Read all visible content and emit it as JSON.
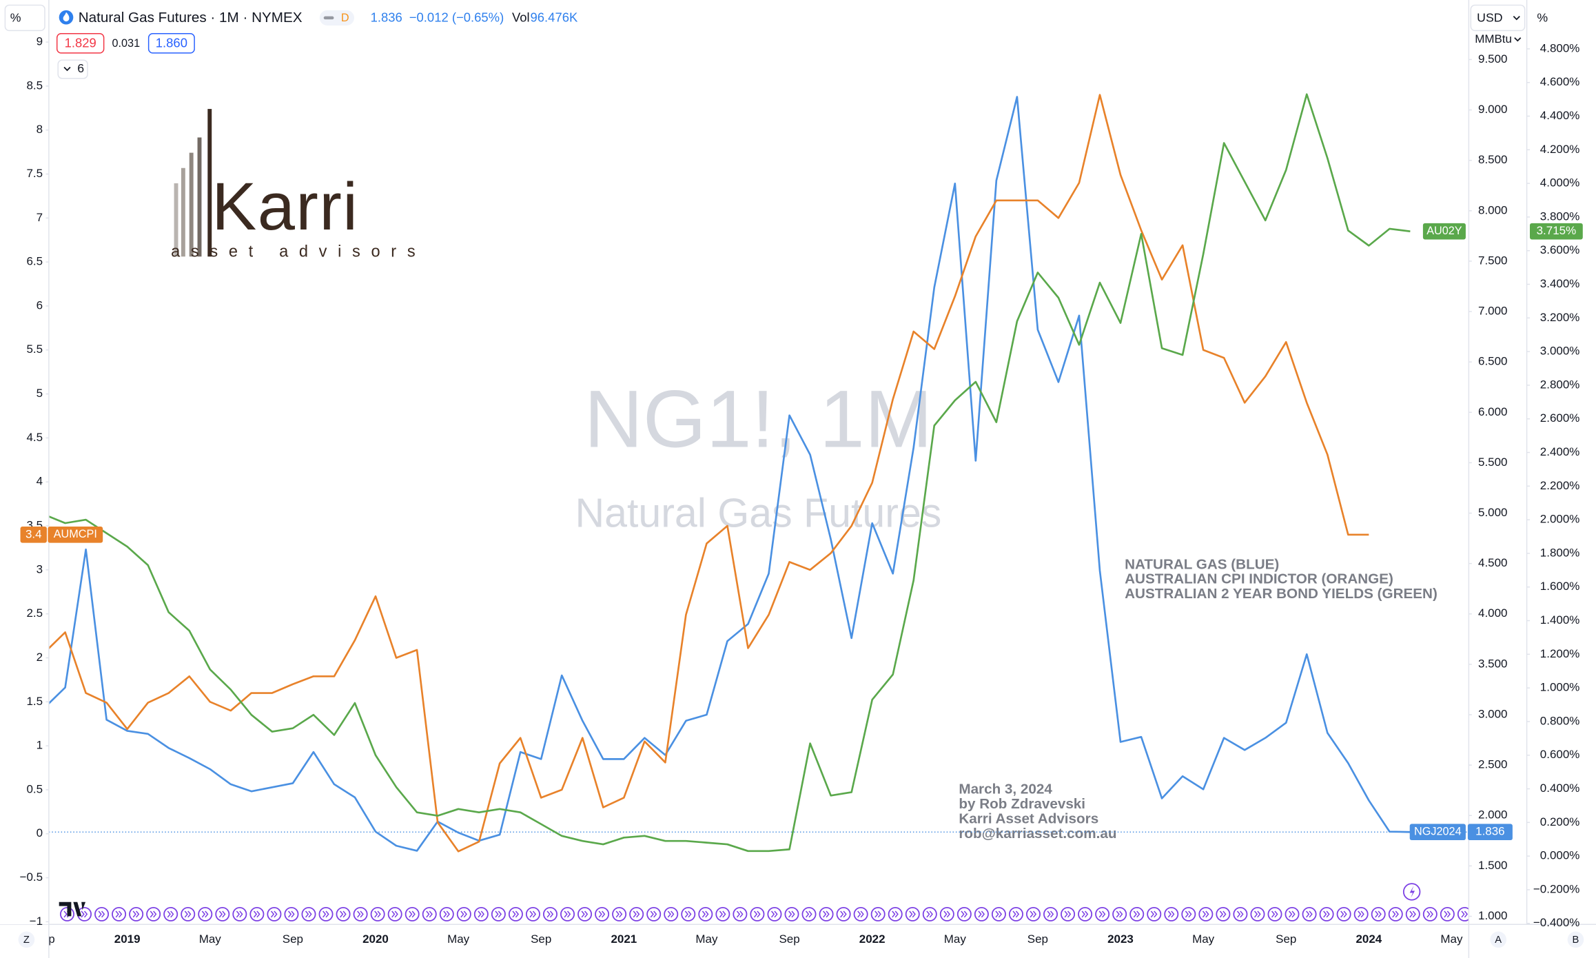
{
  "header": {
    "left_scale_unit": "%",
    "symbol_title": "Natural Gas Futures · 1M · NYMEX",
    "interval_badge": "D",
    "last": "1.836",
    "change": "−0.012 (−0.65%)",
    "vol_label": "Vol",
    "vol": "96.476K",
    "bid": "1.829",
    "spread": "0.031",
    "ask": "1.860",
    "indicators_count": "6",
    "currency": "USD",
    "unit": "MMBtu",
    "right_scale_unit": "%"
  },
  "logo": {
    "name": "Karri",
    "tagline": "asset advisors"
  },
  "annotations": {
    "legend_notes": [
      "NATURAL GAS (BLUE)",
      "AUSTRALIAN CPI INDICTOR (ORANGE)",
      "AUSTRALIAN 2 YEAR BOND YIELDS (GREEN)"
    ],
    "byline": [
      "March 3, 2024",
      "by Rob Zdravevski",
      "Karri Asset Advisors",
      "rob@karriasset.com.au"
    ]
  },
  "footer": {
    "left": "Z",
    "auto": "A",
    "right": "B"
  },
  "chart_data": {
    "type": "line",
    "watermark": {
      "symbol": "NG1!, 1M",
      "name": "Natural Gas Futures"
    },
    "categories": [
      "Sep",
      null,
      null,
      null,
      "2019",
      null,
      null,
      null,
      "May",
      null,
      null,
      null,
      "Sep",
      null,
      null,
      null,
      "2020",
      null,
      null,
      null,
      "May",
      null,
      null,
      null,
      "Sep",
      null,
      null,
      null,
      "2021",
      null,
      null,
      null,
      "May",
      null,
      null,
      null,
      "Sep",
      null,
      null,
      null,
      "2022",
      null,
      null,
      null,
      "May",
      null,
      null,
      null,
      "Sep",
      null,
      null,
      null,
      "2023",
      null,
      null,
      null,
      "May",
      null,
      null,
      null,
      "Sep",
      null,
      null,
      null,
      "2024",
      null,
      null,
      null,
      "May"
    ],
    "ylim": [
      -1.03,
      9.42
    ],
    "yticks": [
      {
        "value": -1,
        "label": "−1"
      },
      {
        "value": -0.5,
        "label": "−0.5"
      },
      0,
      0.5,
      1,
      1.5,
      2,
      2.5,
      3,
      3.5,
      4,
      4.5,
      5,
      5.5,
      6,
      6.5,
      7,
      7.5,
      8,
      8.5,
      9
    ],
    "y2lim": [
      0.92,
      10.04
    ],
    "y2ticks": [
      {
        "value": 1,
        "label": "1.000"
      },
      {
        "value": 1.5,
        "label": "1.500"
      },
      {
        "value": 2,
        "label": "2.000"
      },
      {
        "value": 2.5,
        "label": "2.500"
      },
      {
        "value": 3,
        "label": "3.000"
      },
      {
        "value": 3.5,
        "label": "3.500"
      },
      {
        "value": 4,
        "label": "4.000"
      },
      {
        "value": 4.5,
        "label": "4.500"
      },
      {
        "value": 5,
        "label": "5.000"
      },
      {
        "value": 5.5,
        "label": "5.500"
      },
      {
        "value": 6,
        "label": "6.000"
      },
      {
        "value": 6.5,
        "label": "6.500"
      },
      {
        "value": 7,
        "label": "7.000"
      },
      {
        "value": 7.5,
        "label": "7.500"
      },
      {
        "value": 8,
        "label": "8.000"
      },
      {
        "value": 8.5,
        "label": "8.500"
      },
      {
        "value": 9,
        "label": "9.000"
      },
      {
        "value": 9.5,
        "label": "9.500"
      }
    ],
    "y3lim": [
      -0.406,
      5.06
    ],
    "y3ticks": [
      {
        "value": -0.4,
        "label": "−0.400%"
      },
      {
        "value": -0.2,
        "label": "−0.200%"
      },
      {
        "value": 0,
        "label": "0.000%"
      },
      {
        "value": 0.2,
        "label": "0.200%"
      },
      {
        "value": 0.4,
        "label": "0.400%"
      },
      {
        "value": 0.6,
        "label": "0.600%"
      },
      {
        "value": 0.8,
        "label": "0.800%"
      },
      {
        "value": 1,
        "label": "1.000%"
      },
      {
        "value": 1.2,
        "label": "1.200%"
      },
      {
        "value": 1.4,
        "label": "1.400%"
      },
      {
        "value": 1.6,
        "label": "1.600%"
      },
      {
        "value": 1.8,
        "label": "1.800%"
      },
      {
        "value": 2,
        "label": "2.000%"
      },
      {
        "value": 2.2,
        "label": "2.200%"
      },
      {
        "value": 2.4,
        "label": "2.400%"
      },
      {
        "value": 2.6,
        "label": "2.600%"
      },
      {
        "value": 2.8,
        "label": "2.800%"
      },
      {
        "value": 3,
        "label": "3.000%"
      },
      {
        "value": 3.2,
        "label": "3.200%"
      },
      {
        "value": 3.4,
        "label": "3.400%"
      },
      {
        "value": 3.6,
        "label": "3.600%"
      },
      {
        "value": 3.8,
        "label": "3.800%"
      },
      {
        "value": 4,
        "label": "4.000%"
      },
      {
        "value": 4.2,
        "label": "4.200%"
      },
      {
        "value": 4.4,
        "label": "4.400%"
      },
      {
        "value": 4.6,
        "label": "4.600%"
      },
      {
        "value": 4.8,
        "label": "4.800%"
      }
    ],
    "grid": false,
    "series": [
      {
        "name": "NGJ2024",
        "color": "#4a90e2",
        "axis": "y2",
        "values": [
          3.07,
          3.27,
          4.64,
          2.95,
          2.84,
          2.81,
          2.67,
          2.57,
          2.46,
          2.31,
          2.24,
          2.28,
          2.32,
          2.63,
          2.31,
          2.18,
          1.84,
          1.7,
          1.65,
          1.94,
          1.83,
          1.75,
          1.81,
          2.63,
          2.56,
          3.39,
          2.94,
          2.56,
          2.56,
          2.77,
          2.6,
          2.94,
          3.0,
          3.73,
          3.9,
          4.4,
          5.97,
          5.58,
          4.74,
          3.76,
          4.9,
          4.4,
          5.65,
          7.24,
          8.27,
          5.52,
          8.3,
          9.13,
          6.82,
          6.3,
          6.96,
          4.43,
          2.73,
          2.78,
          2.17,
          2.39,
          2.26,
          2.77,
          2.65,
          2.77,
          2.92,
          3.6,
          2.82,
          2.52,
          2.15,
          1.84,
          1.836,
          null,
          null
        ]
      },
      {
        "name": "AUMCPI",
        "color": "#e8822a",
        "axis": "y",
        "values": [
          2.06,
          2.29,
          1.6,
          1.49,
          1.19,
          1.49,
          1.6,
          1.79,
          1.5,
          1.4,
          1.6,
          1.6,
          1.7,
          1.79,
          1.79,
          2.2,
          2.7,
          2.0,
          2.09,
          0.13,
          -0.2,
          -0.09,
          0.8,
          1.09,
          0.41,
          0.5,
          1.09,
          0.3,
          0.41,
          1.05,
          0.81,
          2.49,
          3.3,
          3.5,
          2.11,
          2.49,
          3.09,
          3.0,
          3.19,
          3.5,
          3.99,
          4.94,
          5.71,
          5.51,
          6.11,
          6.79,
          7.2,
          7.2,
          7.2,
          7.0,
          7.4,
          8.4,
          7.49,
          6.86,
          6.3,
          6.69,
          5.5,
          5.41,
          4.9,
          5.2,
          5.59,
          4.9,
          4.31,
          3.4,
          3.4,
          null,
          null,
          null,
          null
        ]
      },
      {
        "name": "AU02Y",
        "color": "#5aa84b",
        "axis": "y3",
        "values": [
          2.03,
          1.98,
          2.0,
          1.92,
          1.84,
          1.73,
          1.45,
          1.34,
          1.11,
          0.99,
          0.84,
          0.74,
          0.76,
          0.84,
          0.72,
          0.91,
          0.6,
          0.41,
          0.26,
          0.24,
          0.28,
          0.26,
          0.28,
          0.26,
          0.19,
          0.12,
          0.09,
          0.07,
          0.11,
          0.12,
          0.09,
          0.09,
          0.08,
          0.07,
          0.03,
          0.03,
          0.04,
          0.67,
          0.36,
          0.38,
          0.93,
          1.08,
          1.64,
          2.56,
          2.71,
          2.82,
          2.58,
          3.18,
          3.47,
          3.32,
          3.04,
          3.41,
          3.17,
          3.7,
          3.02,
          2.98,
          3.58,
          4.24,
          4.01,
          3.78,
          4.08,
          4.53,
          4.15,
          3.72,
          3.63,
          3.73,
          3.715,
          null,
          null
        ],
        "value_labels": [
          null,
          null,
          null,
          null,
          null,
          null,
          null,
          null,
          null,
          null,
          null,
          null,
          null,
          null,
          null,
          null,
          null,
          null,
          null,
          null,
          null,
          null,
          null,
          null,
          null,
          null,
          null,
          null,
          null,
          null,
          null,
          null,
          null,
          null,
          null,
          null,
          null,
          null,
          null,
          null,
          null,
          null,
          null,
          null,
          null,
          null,
          null,
          null,
          null,
          null,
          null,
          null,
          null,
          null,
          null,
          null,
          null,
          null,
          null,
          null,
          null,
          null,
          null,
          null,
          null,
          null,
          "3.715%",
          null,
          null
        ]
      }
    ]
  }
}
